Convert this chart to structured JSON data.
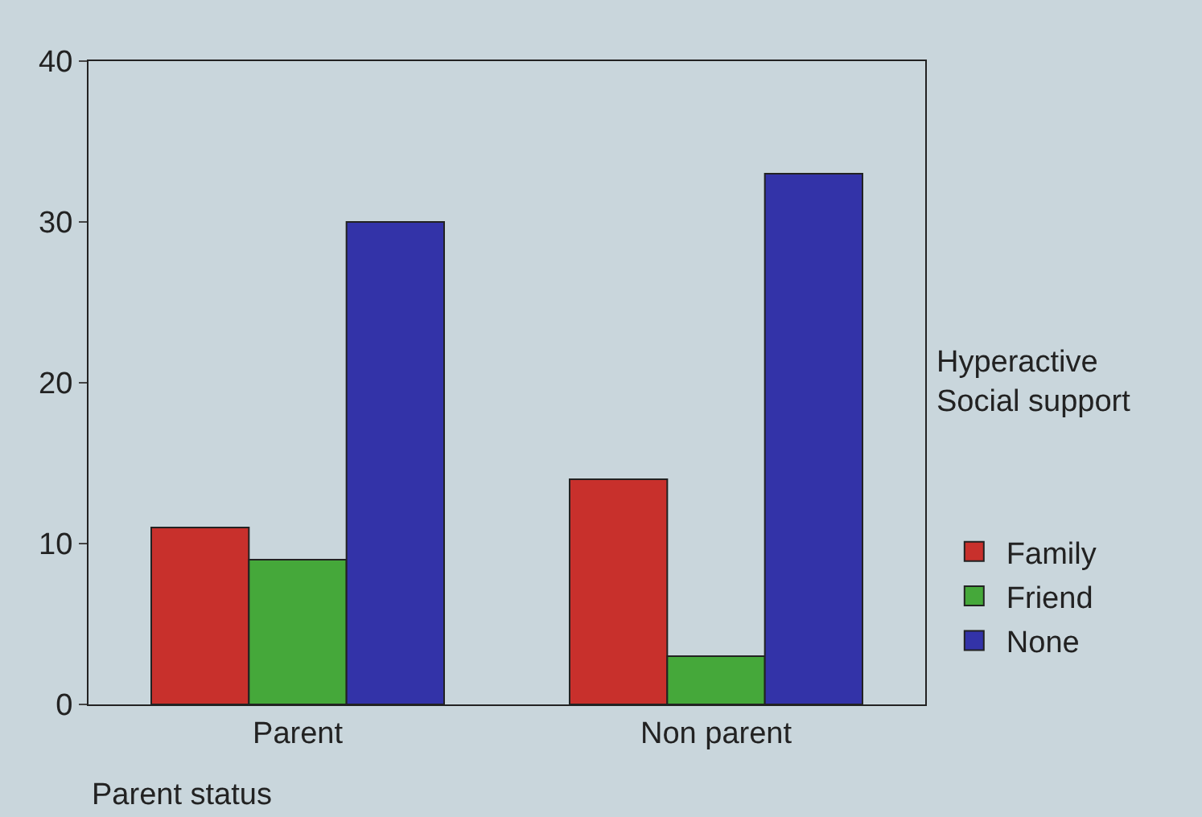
{
  "chart_data": {
    "type": "bar",
    "categories": [
      "Parent",
      "Non parent"
    ],
    "xlabel": "Parent status",
    "legend_title": "Hyperactive\nSocial support",
    "series": [
      {
        "name": "Family",
        "color": "#c8302c",
        "values": [
          11,
          14
        ]
      },
      {
        "name": "Friend",
        "color": "#45a83a",
        "values": [
          9,
          3
        ]
      },
      {
        "name": "None",
        "color": "#3333a8",
        "values": [
          30,
          33
        ]
      }
    ],
    "ylim": [
      0,
      40
    ],
    "yticks": [
      0,
      10,
      20,
      30,
      40
    ],
    "grid": false,
    "legend": "right"
  }
}
